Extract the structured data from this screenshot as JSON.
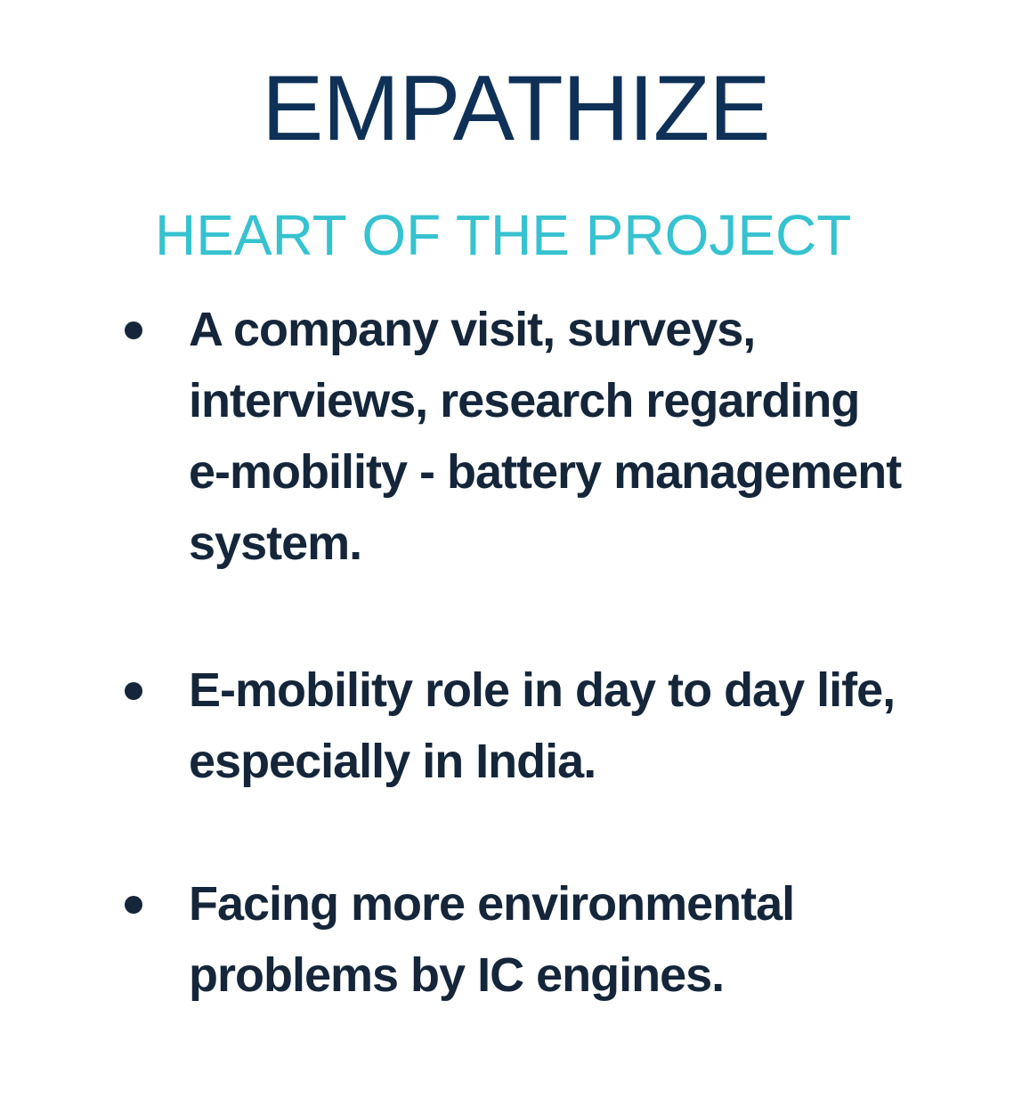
{
  "slide": {
    "title": "EMPATHIZE",
    "subtitle": "HEART OF THE PROJECT",
    "bullets": [
      {
        "lines": [
          "A company visit, surveys,",
          "interviews, research regarding",
          "e-mobility - battery management",
          "system."
        ]
      },
      {
        "lines": [
          "E-mobility role in day to day life,",
          "especially in India."
        ]
      },
      {
        "lines": [
          "Facing more environmental",
          "problems by IC engines."
        ]
      }
    ]
  },
  "colors": {
    "title": "#0f3157",
    "subtitle": "#36c2cf",
    "body_text": "#15263a",
    "background": "#ffffff"
  }
}
